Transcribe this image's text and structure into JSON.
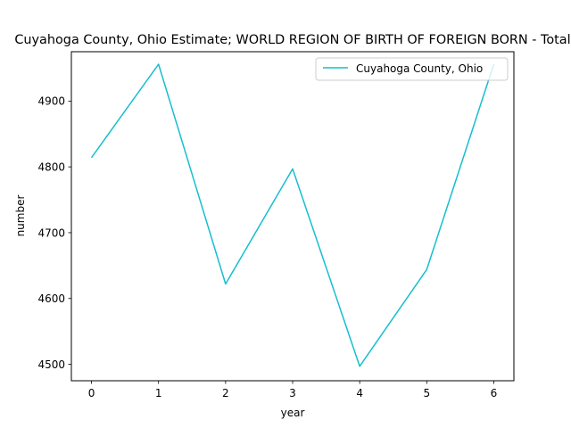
{
  "chart_data": {
    "type": "line",
    "title": "Cuyahoga County, Ohio Estimate; WORLD REGION OF BIRTH OF FOREIGN BORN - Total",
    "xlabel": "year",
    "ylabel": "number",
    "x": [
      0,
      1,
      2,
      3,
      4,
      5,
      6
    ],
    "xlim": [
      -0.3,
      6.3
    ],
    "ylim": [
      4475,
      4975
    ],
    "xticks": [
      0,
      1,
      2,
      3,
      4,
      5,
      6
    ],
    "yticks": [
      4500,
      4600,
      4700,
      4800,
      4900
    ],
    "grid": false,
    "legend_position": "top-right",
    "series": [
      {
        "name": "Cuyahoga County, Ohio",
        "color": "#17becf",
        "values": [
          4814,
          4956,
          4622,
          4797,
          4497,
          4644,
          4956
        ]
      }
    ]
  }
}
